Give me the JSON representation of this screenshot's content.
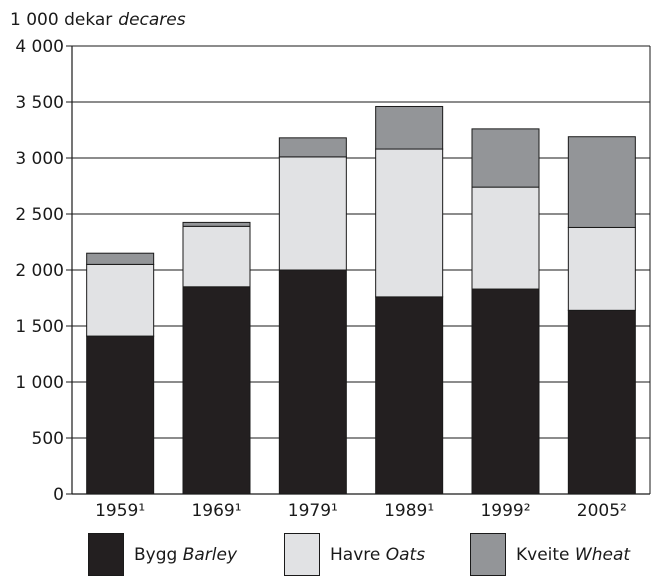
{
  "chart_data": {
    "type": "bar",
    "stacked": true,
    "unit_label": "1 000 dekar",
    "unit_label_en": "decares",
    "categories": [
      "1959¹",
      "1969¹",
      "1979¹",
      "1989¹",
      "1999²",
      "2005²"
    ],
    "series": [
      {
        "name": "Bygg",
        "name_en": "Barley",
        "color": "#231f20",
        "values": [
          1410,
          1850,
          2000,
          1760,
          1830,
          1640
        ]
      },
      {
        "name": "Havre",
        "name_en": "Oats",
        "color": "#e1e2e4",
        "values": [
          640,
          540,
          1010,
          1320,
          910,
          740
        ]
      },
      {
        "name": "Kveite",
        "name_en": "Wheat",
        "color": "#939598",
        "values": [
          100,
          35,
          170,
          380,
          520,
          810
        ]
      }
    ],
    "ylim": [
      0,
      4000
    ],
    "yticks": [
      0,
      500,
      1000,
      1500,
      2000,
      2500,
      3000,
      3500,
      4000
    ],
    "ytick_labels": [
      "0",
      "500",
      "1 000",
      "1 500",
      "2 000",
      "2 500",
      "3 000",
      "3 500",
      "4 000"
    ],
    "grid": true,
    "legend_position": "bottom"
  }
}
